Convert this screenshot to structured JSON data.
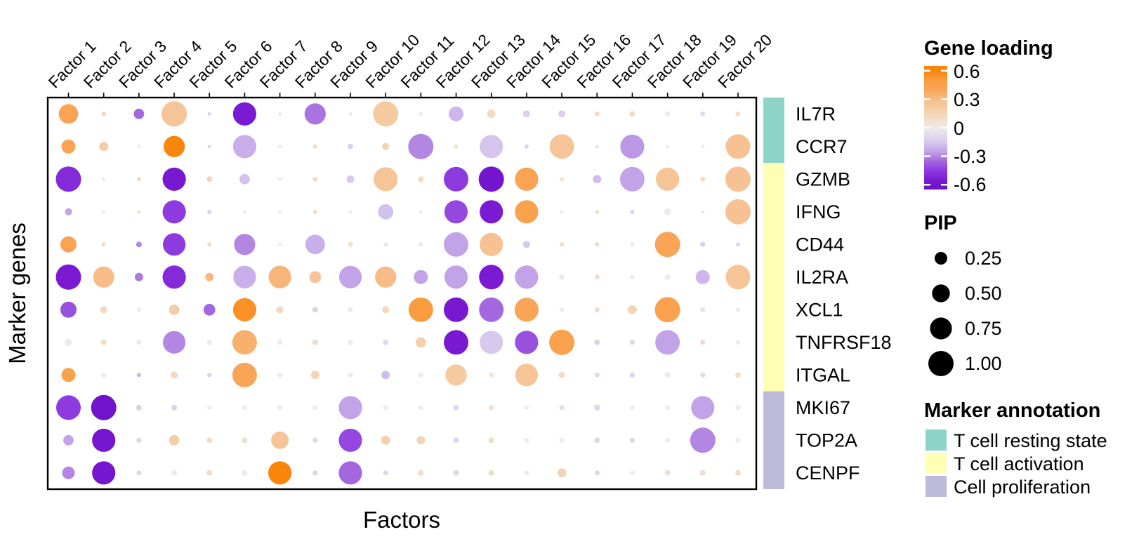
{
  "figure": {
    "x_axis_title": "Factors",
    "y_axis_title": "Marker genes"
  },
  "chart_data": {
    "type": "heatmap",
    "subtype": "dot-plot-matrix",
    "description": "Bubble matrix of gene loadings per factor; dot color = gene loading, dot area = PIP",
    "x_categories": [
      "Factor 1",
      "Factor 2",
      "Factor 3",
      "Factor 4",
      "Factor 5",
      "Factor 6",
      "Factor 7",
      "Factor 8",
      "Factor 9",
      "Factor 10",
      "Factor 11",
      "Factor 12",
      "Factor 13",
      "Factor 14",
      "Factor 15",
      "Factor 16",
      "Factor 17",
      "Factor 18",
      "Factor 19",
      "Factor 20"
    ],
    "xlabel": "Factors",
    "ylabel": "Marker genes",
    "color_domain": [
      -0.6,
      0.6
    ],
    "size_domain": [
      0,
      1
    ],
    "color_scale_stops": [
      [
        -0.65,
        "#6A11C9"
      ],
      [
        -0.55,
        "#7B1AD3"
      ],
      [
        -0.45,
        "#8D3ADF"
      ],
      [
        -0.35,
        "#A368DF"
      ],
      [
        -0.25,
        "#C2A3E8"
      ],
      [
        -0.15,
        "#D7C8EE"
      ],
      [
        -0.05,
        "#E7E2EF"
      ],
      [
        0,
        "#EDEAE7"
      ],
      [
        0.08,
        "#F2DFCB"
      ],
      [
        0.18,
        "#F4D0AC"
      ],
      [
        0.28,
        "#F6C090"
      ],
      [
        0.4,
        "#F9A558"
      ],
      [
        0.5,
        "#F99C3F"
      ],
      [
        0.6,
        "#F8860B"
      ]
    ],
    "rows": [
      {
        "gene": "IL7R",
        "annotation": "T cell resting state",
        "loading": [
          0.42,
          0.15,
          -0.35,
          0.25,
          -0.12,
          -0.55,
          0.0,
          -0.33,
          -0.02,
          0.22,
          -0.02,
          -0.2,
          0.12,
          -0.12,
          -0.12,
          0.1,
          0.1,
          0.0,
          -0.08,
          0.08
        ],
        "pip": [
          0.6,
          0.03,
          0.17,
          1.0,
          0.02,
          0.85,
          0.02,
          0.7,
          0.02,
          1.0,
          0.02,
          0.34,
          0.11,
          0.08,
          0.08,
          0.04,
          0.05,
          0.04,
          0.04,
          0.04
        ]
      },
      {
        "gene": "CCR7",
        "annotation": "T cell resting state",
        "loading": [
          0.42,
          0.2,
          0.0,
          0.6,
          -0.1,
          -0.22,
          0.0,
          0.1,
          -0.12,
          0.15,
          -0.3,
          0.05,
          -0.16,
          -0.1,
          0.25,
          0.05,
          -0.27,
          0.0,
          0.0,
          0.27
        ],
        "pip": [
          0.31,
          0.13,
          0.02,
          0.7,
          0.02,
          0.85,
          0.02,
          0.03,
          0.05,
          0.08,
          1.0,
          0.03,
          0.85,
          0.03,
          0.95,
          0.02,
          0.9,
          0.02,
          0.02,
          0.95
        ]
      },
      {
        "gene": "GZMB",
        "annotation": "T cell activation",
        "loading": [
          -0.5,
          0.0,
          0.1,
          -0.57,
          0.15,
          -0.17,
          0.0,
          0.1,
          -0.15,
          0.25,
          0.12,
          -0.45,
          -0.6,
          0.42,
          0.05,
          -0.18,
          -0.25,
          0.25,
          0.1,
          0.27
        ],
        "pip": [
          1.0,
          0.02,
          0.03,
          0.85,
          0.05,
          0.17,
          0.02,
          0.04,
          0.09,
          0.9,
          0.05,
          0.95,
          1.0,
          0.85,
          0.03,
          0.11,
          0.95,
          0.85,
          0.04,
          1.0
        ]
      },
      {
        "gene": "IFNG",
        "annotation": "T cell activation",
        "loading": [
          -0.25,
          0.0,
          0.08,
          -0.45,
          -0.12,
          0.0,
          0.0,
          0.1,
          0.0,
          -0.17,
          0.0,
          -0.42,
          -0.55,
          0.45,
          0.0,
          0.08,
          -0.12,
          0.0,
          0.0,
          0.27
        ],
        "pip": [
          0.08,
          0.02,
          0.02,
          0.85,
          0.03,
          0.02,
          0.02,
          0.03,
          0.02,
          0.37,
          0.02,
          0.85,
          0.85,
          0.85,
          0.02,
          0.03,
          0.03,
          0.08,
          0.02,
          1.0
        ]
      },
      {
        "gene": "CD44",
        "annotation": "T cell activation",
        "loading": [
          0.42,
          0.1,
          -0.3,
          -0.45,
          0.1,
          -0.3,
          0.0,
          -0.22,
          0.08,
          -0.02,
          0.0,
          -0.25,
          0.27,
          -0.15,
          0.1,
          0.1,
          0.0,
          0.4,
          -0.12,
          -0.1
        ],
        "pip": [
          0.41,
          0.03,
          0.05,
          0.8,
          0.03,
          0.7,
          0.02,
          0.6,
          0.04,
          0.03,
          0.03,
          0.95,
          0.85,
          0.08,
          0.03,
          0.03,
          0.03,
          1.0,
          0.04,
          0.03
        ]
      },
      {
        "gene": "IL2RA",
        "annotation": "T cell activation",
        "loading": [
          -0.55,
          0.3,
          -0.32,
          -0.5,
          0.32,
          -0.22,
          0.33,
          0.25,
          -0.25,
          0.3,
          -0.25,
          -0.25,
          -0.55,
          -0.25,
          0.0,
          0.1,
          0.0,
          0.0,
          -0.2,
          0.25
        ],
        "pip": [
          1.0,
          0.7,
          0.11,
          0.85,
          0.11,
          0.8,
          0.8,
          0.22,
          0.8,
          0.7,
          0.31,
          0.85,
          0.95,
          0.85,
          0.05,
          0.04,
          0.03,
          0.05,
          0.31,
          0.95
        ]
      },
      {
        "gene": "XCL1",
        "annotation": "T cell activation",
        "loading": [
          -0.4,
          0.12,
          0.0,
          0.2,
          -0.35,
          0.55,
          0.12,
          -0.12,
          0.0,
          0.12,
          0.5,
          -0.57,
          -0.35,
          0.4,
          0.0,
          0.1,
          0.15,
          0.45,
          0.05,
          0.0
        ],
        "pip": [
          0.41,
          0.08,
          0.03,
          0.17,
          0.22,
          0.85,
          0.08,
          0.05,
          0.04,
          0.08,
          0.95,
          0.95,
          0.95,
          0.9,
          0.03,
          0.04,
          0.13,
          1.0,
          0.04,
          0.03
        ]
      },
      {
        "gene": "TNFRSF18",
        "annotation": "T cell activation",
        "loading": [
          0.0,
          0.1,
          0.0,
          -0.3,
          0.0,
          0.35,
          0.0,
          0.1,
          0.0,
          -0.1,
          0.18,
          -0.57,
          -0.15,
          -0.4,
          0.45,
          -0.12,
          -0.1,
          -0.25,
          0.1,
          0.0
        ],
        "pip": [
          0.08,
          0.05,
          0.04,
          0.8,
          0.04,
          0.95,
          0.04,
          0.05,
          0.04,
          0.05,
          0.17,
          0.95,
          0.85,
          0.85,
          1.0,
          0.05,
          0.04,
          0.95,
          0.04,
          0.03
        ]
      },
      {
        "gene": "ITGAL",
        "annotation": "T cell activation",
        "loading": [
          0.45,
          0.0,
          -0.2,
          0.12,
          -0.12,
          0.4,
          0.0,
          0.15,
          0.0,
          -0.18,
          0.0,
          0.22,
          0.05,
          0.25,
          0.1,
          -0.1,
          -0.12,
          0.0,
          -0.08,
          0.1
        ],
        "pip": [
          0.31,
          0.04,
          0.03,
          0.08,
          0.03,
          0.95,
          0.04,
          0.11,
          0.04,
          0.11,
          0.04,
          0.7,
          0.04,
          0.8,
          0.06,
          0.04,
          0.04,
          0.05,
          0.04,
          0.05
        ]
      },
      {
        "gene": "MKI67",
        "annotation": "Cell proliferation",
        "loading": [
          -0.45,
          -0.62,
          -0.12,
          -0.12,
          0.0,
          0.0,
          0.0,
          0.0,
          -0.25,
          0.0,
          0.0,
          -0.1,
          0.08,
          0.0,
          0.08,
          -0.1,
          0.0,
          0.0,
          -0.25,
          0.0
        ],
        "pip": [
          0.95,
          1.0,
          0.05,
          0.05,
          0.03,
          0.04,
          0.04,
          0.04,
          0.85,
          0.04,
          0.03,
          0.05,
          0.04,
          0.03,
          0.04,
          0.06,
          0.03,
          0.04,
          0.85,
          0.04
        ]
      },
      {
        "gene": "TOP2A",
        "annotation": "Cell proliferation",
        "loading": [
          -0.25,
          -0.58,
          -0.1,
          0.2,
          0.1,
          0.08,
          0.25,
          -0.1,
          -0.42,
          0.18,
          0.15,
          -0.1,
          0.1,
          0.0,
          0.0,
          -0.1,
          -0.1,
          0.0,
          -0.3,
          0.0
        ],
        "pip": [
          0.17,
          0.85,
          0.04,
          0.17,
          0.05,
          0.05,
          0.48,
          0.04,
          0.85,
          0.13,
          0.11,
          0.05,
          0.05,
          0.04,
          0.04,
          0.05,
          0.04,
          0.04,
          1.0,
          0.04
        ]
      },
      {
        "gene": "CENPF",
        "annotation": "Cell proliferation",
        "loading": [
          -0.3,
          -0.58,
          -0.1,
          0.0,
          0.1,
          0.0,
          0.6,
          -0.12,
          -0.35,
          -0.1,
          0.1,
          -0.1,
          0.1,
          0.0,
          0.15,
          -0.1,
          0.0,
          0.08,
          0.08,
          0.1
        ],
        "pip": [
          0.25,
          0.85,
          0.04,
          0.05,
          0.05,
          0.05,
          0.85,
          0.04,
          0.85,
          0.04,
          0.05,
          0.05,
          0.05,
          0.04,
          0.13,
          0.04,
          0.03,
          0.05,
          0.05,
          0.05
        ]
      }
    ]
  },
  "legends": {
    "gene_loading": {
      "title": "Gene loading",
      "ticks": [
        "0.6",
        "0.3",
        "0",
        "-0.3",
        "-0.6"
      ],
      "tick_values": [
        0.6,
        0.3,
        0,
        -0.3,
        -0.6
      ],
      "bar_top_color": "#F8860B",
      "bar_mid_color": "#EFECEA",
      "bar_bottom_color": "#7B16D0"
    },
    "pip": {
      "title": "PIP",
      "items": [
        {
          "label": "0.25",
          "value": 0.25
        },
        {
          "label": "0.50",
          "value": 0.5
        },
        {
          "label": "0.75",
          "value": 0.75
        },
        {
          "label": "1.00",
          "value": 1.0
        }
      ],
      "dot_color": "#000000"
    },
    "marker_annotation": {
      "title": "Marker annotation",
      "items": [
        {
          "label": "T cell resting state",
          "color": "#8DD3C7"
        },
        {
          "label": "T cell activation",
          "color": "#FFFFB3"
        },
        {
          "label": "Cell proliferation",
          "color": "#BEBADA"
        }
      ]
    }
  }
}
